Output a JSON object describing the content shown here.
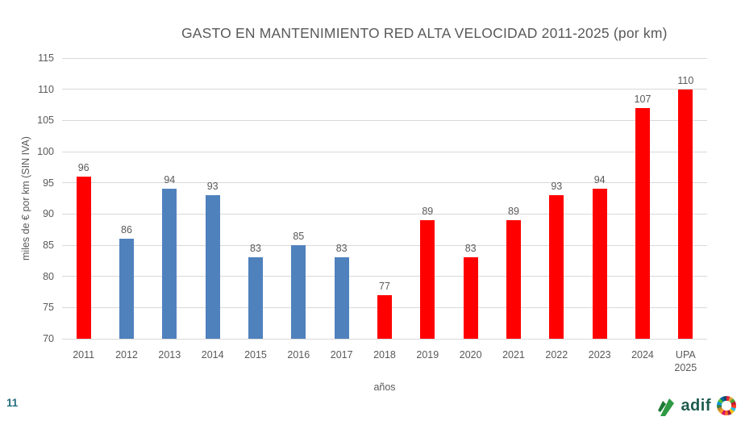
{
  "chart_data": {
    "type": "bar",
    "title": "GASTO EN MANTENIMIENTO RED ALTA VELOCIDAD 2011-2025 (por km)",
    "xlabel": "años",
    "ylabel": "miles de € por km (SIN IVA)",
    "ylim": [
      70,
      115
    ],
    "yticks": [
      115,
      110,
      105,
      100,
      95,
      90,
      85,
      80,
      75,
      70
    ],
    "grid": true,
    "legend": "none",
    "categories": [
      "2011",
      "2012",
      "2013",
      "2014",
      "2015",
      "2016",
      "2017",
      "2018",
      "2019",
      "2020",
      "2021",
      "2022",
      "2023",
      "2024",
      "UPA 2025"
    ],
    "categories_display": [
      "2011",
      "2012",
      "2013",
      "2014",
      "2015",
      "2016",
      "2017",
      "2018",
      "2019",
      "2020",
      "2021",
      "2022",
      "2023",
      "2024",
      "UPA\n2025"
    ],
    "values": [
      96,
      86,
      94,
      93,
      83,
      85,
      83,
      77,
      89,
      83,
      89,
      93,
      94,
      107,
      110
    ],
    "bar_colors": [
      "#FE0000",
      "#4F81BD",
      "#4F81BD",
      "#4F81BD",
      "#4F81BD",
      "#4F81BD",
      "#4F81BD",
      "#FE0000",
      "#FE0000",
      "#FE0000",
      "#FE0000",
      "#FE0000",
      "#FE0000",
      "#FE0000",
      "#FE0000"
    ],
    "colors": {
      "red_bar": "#FE0000",
      "blue_bar": "#4F81BD",
      "gridline": "#D9D9D9",
      "text": "#595959"
    }
  },
  "footer": {
    "page_number": "11",
    "brand_text": "adif",
    "icons": {
      "adif_arrow": "adif-arrow-icon",
      "sdg_wheel": "sdg-wheel-icon"
    },
    "colors": {
      "page_number": "#256E80",
      "adif_text": "#1E5B4F",
      "adif_arrow_light": "#2E9A44",
      "adif_arrow_dark": "#1C7A36",
      "sdg_ring": [
        "#E5243B",
        "#DDA63A",
        "#4C9F38",
        "#C5192D",
        "#FF3A21",
        "#26BDE2",
        "#FCC30B",
        "#A21942",
        "#FD6925",
        "#DD1367",
        "#FD9D24",
        "#BF8B2E",
        "#3F7E44",
        "#0A97D9",
        "#56C02B",
        "#00689D",
        "#19486A"
      ]
    }
  }
}
